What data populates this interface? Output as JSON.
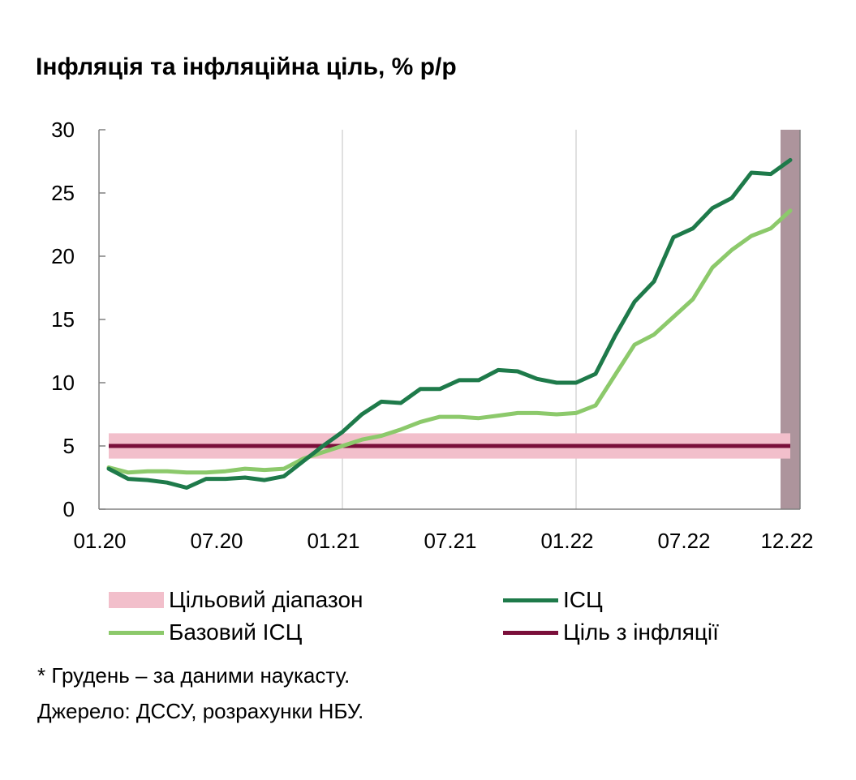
{
  "chart_data": {
    "type": "line",
    "title": "Інфляція та інфляційна ціль, % р/р",
    "ylim": [
      0,
      30
    ],
    "yticks": [
      "0",
      "5",
      "10",
      "15",
      "20",
      "25",
      "30"
    ],
    "xticks": [
      "01.20",
      "07.20",
      "01.21",
      "07.21",
      "01.22",
      "07.22",
      "12.22"
    ],
    "x": [
      "01.20",
      "02.20",
      "03.20",
      "04.20",
      "05.20",
      "06.20",
      "07.20",
      "08.20",
      "09.20",
      "10.20",
      "11.20",
      "12.20",
      "01.21",
      "02.21",
      "03.21",
      "04.21",
      "05.21",
      "06.21",
      "07.21",
      "08.21",
      "09.21",
      "10.21",
      "11.21",
      "12.21",
      "01.22",
      "02.22",
      "03.22",
      "04.22",
      "05.22",
      "06.22",
      "07.22",
      "08.22",
      "09.22",
      "10.22",
      "11.22",
      "12.22"
    ],
    "target_band": [
      4,
      6
    ],
    "target_value": 5,
    "nowcast_start": "12.22",
    "series": [
      {
        "name": "ІСЦ",
        "color": "#1e7a4a",
        "values": [
          3.2,
          2.4,
          2.3,
          2.1,
          1.7,
          2.4,
          2.4,
          2.5,
          2.3,
          2.6,
          3.8,
          5.0,
          6.1,
          7.5,
          8.5,
          8.4,
          9.5,
          9.5,
          10.2,
          10.2,
          11.0,
          10.9,
          10.3,
          10.0,
          10.0,
          10.7,
          13.7,
          16.4,
          18.0,
          21.5,
          22.2,
          23.8,
          24.6,
          26.6,
          26.5,
          27.6
        ]
      },
      {
        "name": "Базовий ІСЦ",
        "color": "#8cc96b",
        "values": [
          3.3,
          2.9,
          3.0,
          3.0,
          2.9,
          2.9,
          3.0,
          3.2,
          3.1,
          3.2,
          4.0,
          4.5,
          5.0,
          5.5,
          5.8,
          6.3,
          6.9,
          7.3,
          7.3,
          7.2,
          7.4,
          7.6,
          7.6,
          7.5,
          7.6,
          8.2,
          10.6,
          13.0,
          13.8,
          15.2,
          16.6,
          19.1,
          20.5,
          21.6,
          22.2,
          23.6
        ]
      }
    ]
  },
  "legend": {
    "band": "Цільовий діапазон",
    "cpi": "ІСЦ",
    "core": "Базовий ІСЦ",
    "target": "Ціль з інфляції"
  },
  "notes": {
    "nowcast": "* Грудень – за даними наукасту.",
    "source": "Джерело: ДССУ, розрахунки НБУ."
  },
  "colors": {
    "band": "#f2bfcb",
    "target_line": "#7a0f3a",
    "nowcast_shade": "#ad949c",
    "grid": "#c0c0c0"
  }
}
